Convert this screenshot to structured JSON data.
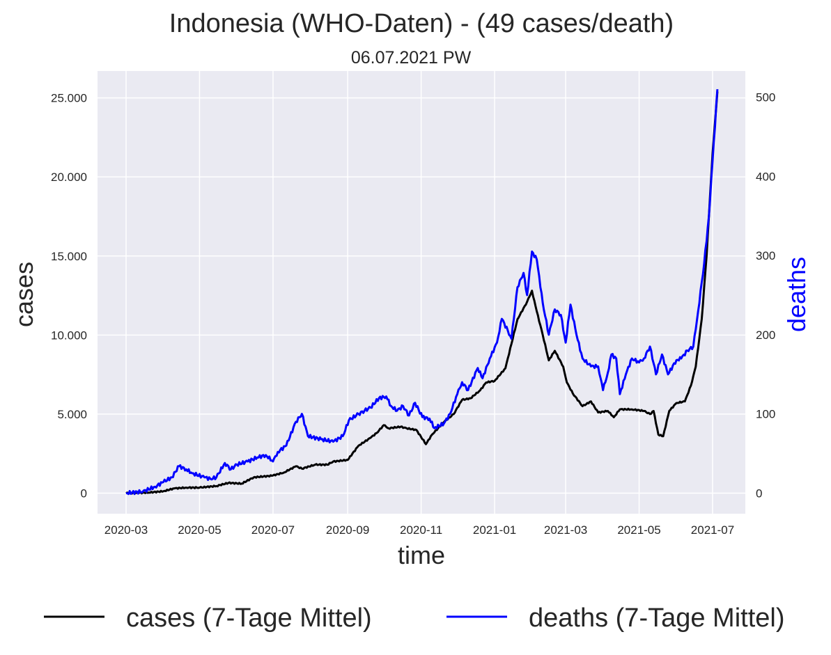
{
  "chart_data": {
    "type": "line",
    "title": "Indonesia (WHO-Daten) - (49 cases/death)",
    "subtitle": "06.07.2021 PW",
    "xlabel": "time",
    "ylabel": "cases",
    "ylabel_right": "deaths",
    "x_ticks": [
      "2020-03",
      "2020-05",
      "2020-07",
      "2020-09",
      "2020-11",
      "2021-01",
      "2021-03",
      "2021-05",
      "2021-07"
    ],
    "y_ticks_left": [
      "0",
      "5.000",
      "10.000",
      "15.000",
      "20.000",
      "25.000"
    ],
    "y_ticks_right": [
      "0",
      "100",
      "200",
      "300",
      "400",
      "500"
    ],
    "ylim_left": [
      -1300,
      26700
    ],
    "ylim_right": [
      -26,
      533
    ],
    "grid": true,
    "legend_position": "bottom",
    "series": [
      {
        "name": "cases (7-Tage Mittel)",
        "axis": "left",
        "color": "#000000",
        "points": [
          [
            "2020-03-01",
            0
          ],
          [
            "2020-03-20",
            40
          ],
          [
            "2020-04-01",
            120
          ],
          [
            "2020-04-10",
            300
          ],
          [
            "2020-04-20",
            350
          ],
          [
            "2020-05-01",
            350
          ],
          [
            "2020-05-15",
            450
          ],
          [
            "2020-05-25",
            650
          ],
          [
            "2020-06-05",
            600
          ],
          [
            "2020-06-15",
            1000
          ],
          [
            "2020-06-30",
            1100
          ],
          [
            "2020-07-10",
            1300
          ],
          [
            "2020-07-20",
            1700
          ],
          [
            "2020-07-25",
            1550
          ],
          [
            "2020-08-05",
            1800
          ],
          [
            "2020-08-15",
            1800
          ],
          [
            "2020-08-20",
            2000
          ],
          [
            "2020-09-01",
            2100
          ],
          [
            "2020-09-10",
            3000
          ],
          [
            "2020-09-20",
            3500
          ],
          [
            "2020-09-25",
            3800
          ],
          [
            "2020-10-01",
            4300
          ],
          [
            "2020-10-05",
            4100
          ],
          [
            "2020-10-15",
            4200
          ],
          [
            "2020-10-20",
            4100
          ],
          [
            "2020-10-28",
            4000
          ],
          [
            "2020-11-05",
            3100
          ],
          [
            "2020-11-10",
            3700
          ],
          [
            "2020-11-20",
            4500
          ],
          [
            "2020-11-28",
            5000
          ],
          [
            "2020-12-05",
            5900
          ],
          [
            "2020-12-12",
            6000
          ],
          [
            "2020-12-20",
            6500
          ],
          [
            "2020-12-25",
            7000
          ],
          [
            "2021-01-01",
            7100
          ],
          [
            "2021-01-10",
            7900
          ],
          [
            "2021-01-20",
            11000
          ],
          [
            "2021-01-28",
            12100
          ],
          [
            "2021-02-01",
            12800
          ],
          [
            "2021-02-05",
            11500
          ],
          [
            "2021-02-10",
            10000
          ],
          [
            "2021-02-15",
            8400
          ],
          [
            "2021-02-20",
            9000
          ],
          [
            "2021-02-27",
            8000
          ],
          [
            "2021-03-02",
            7000
          ],
          [
            "2021-03-07",
            6300
          ],
          [
            "2021-03-15",
            5500
          ],
          [
            "2021-03-22",
            5800
          ],
          [
            "2021-03-28",
            5100
          ],
          [
            "2021-04-05",
            5200
          ],
          [
            "2021-04-10",
            4800
          ],
          [
            "2021-04-15",
            5300
          ],
          [
            "2021-04-25",
            5300
          ],
          [
            "2021-05-05",
            5200
          ],
          [
            "2021-05-10",
            5000
          ],
          [
            "2021-05-13",
            5200
          ],
          [
            "2021-05-17",
            3700
          ],
          [
            "2021-05-21",
            3600
          ],
          [
            "2021-05-26",
            5200
          ],
          [
            "2021-06-01",
            5700
          ],
          [
            "2021-06-08",
            5800
          ],
          [
            "2021-06-13",
            6800
          ],
          [
            "2021-06-17",
            8000
          ],
          [
            "2021-06-22",
            11000
          ],
          [
            "2021-06-26",
            15000
          ],
          [
            "2021-07-01",
            21500
          ],
          [
            "2021-07-05",
            25400
          ]
        ]
      },
      {
        "name": "deaths (7-Tage Mittel)",
        "axis": "right",
        "color": "#0000ff",
        "points": [
          [
            "2020-03-01",
            0
          ],
          [
            "2020-03-15",
            2
          ],
          [
            "2020-03-25",
            8
          ],
          [
            "2020-04-01",
            14
          ],
          [
            "2020-04-08",
            20
          ],
          [
            "2020-04-14",
            34
          ],
          [
            "2020-04-20",
            30
          ],
          [
            "2020-04-25",
            25
          ],
          [
            "2020-05-05",
            20
          ],
          [
            "2020-05-10",
            18
          ],
          [
            "2020-05-15",
            20
          ],
          [
            "2020-05-22",
            38
          ],
          [
            "2020-05-27",
            30
          ],
          [
            "2020-06-01",
            36
          ],
          [
            "2020-06-10",
            40
          ],
          [
            "2020-06-18",
            45
          ],
          [
            "2020-06-25",
            48
          ],
          [
            "2020-07-01",
            40
          ],
          [
            "2020-07-05",
            52
          ],
          [
            "2020-07-12",
            60
          ],
          [
            "2020-07-20",
            90
          ],
          [
            "2020-07-25",
            100
          ],
          [
            "2020-07-30",
            72
          ],
          [
            "2020-08-10",
            68
          ],
          [
            "2020-08-20",
            65
          ],
          [
            "2020-08-28",
            72
          ],
          [
            "2020-09-02",
            92
          ],
          [
            "2020-09-10",
            100
          ],
          [
            "2020-09-15",
            104
          ],
          [
            "2020-09-20",
            108
          ],
          [
            "2020-09-27",
            120
          ],
          [
            "2020-10-03",
            122
          ],
          [
            "2020-10-07",
            110
          ],
          [
            "2020-10-12",
            104
          ],
          [
            "2020-10-17",
            110
          ],
          [
            "2020-10-22",
            98
          ],
          [
            "2020-10-27",
            114
          ],
          [
            "2020-11-02",
            96
          ],
          [
            "2020-11-08",
            94
          ],
          [
            "2020-11-12",
            82
          ],
          [
            "2020-11-20",
            88
          ],
          [
            "2020-11-25",
            100
          ],
          [
            "2020-12-01",
            125
          ],
          [
            "2020-12-05",
            140
          ],
          [
            "2020-12-10",
            130
          ],
          [
            "2020-12-18",
            158
          ],
          [
            "2020-12-22",
            145
          ],
          [
            "2020-12-28",
            170
          ],
          [
            "2021-01-03",
            190
          ],
          [
            "2021-01-07",
            220
          ],
          [
            "2021-01-12",
            205
          ],
          [
            "2021-01-15",
            195
          ],
          [
            "2021-01-20",
            260
          ],
          [
            "2021-01-25",
            278
          ],
          [
            "2021-01-28",
            250
          ],
          [
            "2021-02-01",
            305
          ],
          [
            "2021-02-05",
            295
          ],
          [
            "2021-02-10",
            240
          ],
          [
            "2021-02-15",
            200
          ],
          [
            "2021-02-20",
            232
          ],
          [
            "2021-02-25",
            225
          ],
          [
            "2021-03-01",
            190
          ],
          [
            "2021-03-05",
            238
          ],
          [
            "2021-03-10",
            200
          ],
          [
            "2021-03-15",
            170
          ],
          [
            "2021-03-22",
            160
          ],
          [
            "2021-03-28",
            160
          ],
          [
            "2021-04-01",
            130
          ],
          [
            "2021-04-05",
            152
          ],
          [
            "2021-04-08",
            175
          ],
          [
            "2021-04-12",
            170
          ],
          [
            "2021-04-15",
            125
          ],
          [
            "2021-04-20",
            150
          ],
          [
            "2021-04-25",
            170
          ],
          [
            "2021-05-01",
            165
          ],
          [
            "2021-05-05",
            170
          ],
          [
            "2021-05-10",
            185
          ],
          [
            "2021-05-15",
            150
          ],
          [
            "2021-05-20",
            175
          ],
          [
            "2021-05-25",
            150
          ],
          [
            "2021-06-01",
            168
          ],
          [
            "2021-06-05",
            170
          ],
          [
            "2021-06-10",
            180
          ],
          [
            "2021-06-15",
            185
          ],
          [
            "2021-06-19",
            230
          ],
          [
            "2021-06-24",
            290
          ],
          [
            "2021-06-28",
            350
          ],
          [
            "2021-07-01",
            420
          ],
          [
            "2021-07-05",
            510
          ]
        ]
      }
    ]
  }
}
